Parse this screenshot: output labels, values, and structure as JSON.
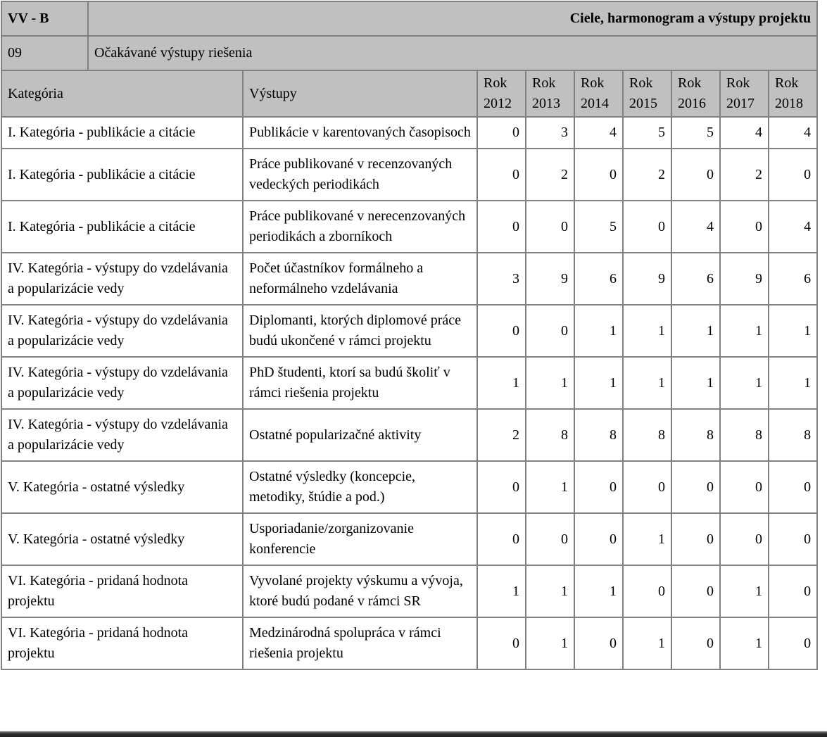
{
  "page": {
    "section_code": "VV - B",
    "section_title": "Ciele, harmonogram a výstupy projektu",
    "subsection_code": "09",
    "subsection_title": "Očakávané výstupy riešenia"
  },
  "table": {
    "category_header": "Kategória",
    "outputs_header": "Výstupy",
    "year_headers": [
      "Rok 2012",
      "Rok 2013",
      "Rok 2014",
      "Rok 2015",
      "Rok 2016",
      "Rok 2017",
      "Rok 2018"
    ],
    "rows": [
      {
        "category": "I. Kategória - publikácie a citácie",
        "output": "Publikácie v karentovaných časopisoch",
        "values": [
          0,
          3,
          4,
          5,
          5,
          4,
          4
        ]
      },
      {
        "category": "I. Kategória - publikácie a citácie",
        "output": "Práce publikované v recenzovaných vedeckých periodikách",
        "values": [
          0,
          2,
          0,
          2,
          0,
          2,
          0
        ]
      },
      {
        "category": "I. Kategória - publikácie a citácie",
        "output": "Práce publikované v nerecenzovaných periodikách a zborníkoch",
        "values": [
          0,
          0,
          5,
          0,
          4,
          0,
          4
        ]
      },
      {
        "category": "IV. Kategória - výstupy do vzdelávania a popularizácie vedy",
        "output": "Počet účastníkov formálneho a neformálneho vzdelávania",
        "values": [
          3,
          9,
          6,
          9,
          6,
          9,
          6
        ]
      },
      {
        "category": "IV. Kategória - výstupy do vzdelávania a popularizácie vedy",
        "output": "Diplomanti, ktorých diplomové práce budú ukončené v rámci projektu",
        "values": [
          0,
          0,
          1,
          1,
          1,
          1,
          1
        ]
      },
      {
        "category": "IV. Kategória - výstupy do vzdelávania a popularizácie vedy",
        "output": "PhD študenti, ktorí sa budú školiť v rámci riešenia projektu",
        "values": [
          1,
          1,
          1,
          1,
          1,
          1,
          1
        ]
      },
      {
        "category": "IV. Kategória - výstupy do vzdelávania a popularizácie vedy",
        "output": "Ostatné popularizačné aktivity",
        "values": [
          2,
          8,
          8,
          8,
          8,
          8,
          8
        ]
      },
      {
        "category": "V. Kategória - ostatné výsledky",
        "output": "Ostatné výsledky (koncepcie, metodiky, štúdie a pod.)",
        "values": [
          0,
          1,
          0,
          0,
          0,
          0,
          0
        ]
      },
      {
        "category": "V. Kategória - ostatné výsledky",
        "output": "Usporiadanie/zorganizovanie konferencie",
        "values": [
          0,
          0,
          0,
          1,
          0,
          0,
          0
        ]
      },
      {
        "category": "VI. Kategória - pridaná hodnota projektu",
        "output": "Vyvolané projekty výskumu a vývoja, ktoré budú podané v rámci SR",
        "values": [
          1,
          1,
          1,
          0,
          0,
          1,
          0
        ]
      },
      {
        "category": "VI. Kategória - pridaná hodnota projektu",
        "output": "Medzinárodná spolupráca v rámci riešenia projektu",
        "values": [
          0,
          1,
          0,
          1,
          0,
          1,
          0
        ]
      }
    ]
  },
  "colors": {
    "header_bg": "#c0c0c0",
    "border": "#808080",
    "cell_bg": "#ffffff",
    "text": "#000000",
    "bottom_bar": "#2e2e2e"
  }
}
